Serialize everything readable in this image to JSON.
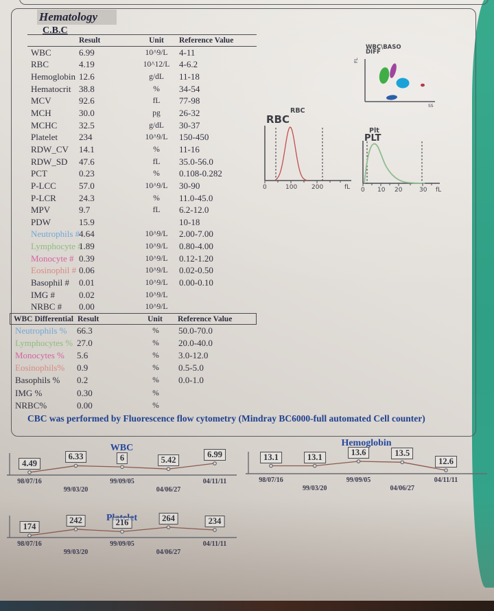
{
  "report": {
    "section_title": "Hematology",
    "subsection_title": "C.B.C",
    "note": "CBC was performed by Fluorescence flow cytometry (Mindray BC6000-full automated Cell counter)"
  },
  "colors": {
    "accent_blue": "#25479e",
    "neutrophil": "#6fa8d8",
    "lymphocyte": "#8cbd7e",
    "monocyte": "#d4649f",
    "eosinophil": "#d98a84",
    "trend_line": "#8a5a50"
  },
  "cbc_table": {
    "headers": {
      "result": "Result",
      "unit": "Unit",
      "reference": "Reference Value"
    },
    "rows": [
      {
        "name": "WBC",
        "result": "6.99",
        "unit": "10^9/L",
        "reference": "4-11",
        "color": ""
      },
      {
        "name": "RBC",
        "result": "4.19",
        "unit": "10^12/L",
        "reference": "4-6.2",
        "color": ""
      },
      {
        "name": "Hemoglobin",
        "result": "12.6",
        "unit": "g/dL",
        "reference": "11-18",
        "color": ""
      },
      {
        "name": "Hematocrit",
        "result": "38.8",
        "unit": "%",
        "reference": "34-54",
        "color": ""
      },
      {
        "name": "MCV",
        "result": "92.6",
        "unit": "fL",
        "reference": "77-98",
        "color": ""
      },
      {
        "name": "MCH",
        "result": "30.0",
        "unit": "pg",
        "reference": "26-32",
        "color": ""
      },
      {
        "name": "MCHC",
        "result": "32.5",
        "unit": "g/dL",
        "reference": "30-37",
        "color": ""
      },
      {
        "name": "Platelet",
        "result": "234",
        "unit": "10^9/L",
        "reference": "150-450",
        "color": ""
      },
      {
        "name": "RDW_CV",
        "result": "14.1",
        "unit": "%",
        "reference": "11-16",
        "color": ""
      },
      {
        "name": "RDW_SD",
        "result": "47.6",
        "unit": "fL",
        "reference": "35.0-56.0",
        "color": ""
      },
      {
        "name": "PCT",
        "result": "0.23",
        "unit": "%",
        "reference": "0.108-0.282",
        "color": ""
      },
      {
        "name": "P-LCC",
        "result": "57.0",
        "unit": "10^9/L",
        "reference": "30-90",
        "color": ""
      },
      {
        "name": "P-LCR",
        "result": "24.3",
        "unit": "%",
        "reference": "11.0-45.0",
        "color": ""
      },
      {
        "name": "MPV",
        "result": "9.7",
        "unit": "fL",
        "reference": "6.2-12.0",
        "color": ""
      },
      {
        "name": "PDW",
        "result": "15.9",
        "unit": "",
        "reference": "10-18",
        "color": ""
      },
      {
        "name": "Neutrophils #",
        "result": "4.64",
        "unit": "10^9/L",
        "reference": "2.00-7.00",
        "color": "#6fa8d8"
      },
      {
        "name": "Lymphocyte #",
        "result": "1.89",
        "unit": "10^9/L",
        "reference": "0.80-4.00",
        "color": "#8cbd7e"
      },
      {
        "name": "Monocyte #",
        "result": "0.39",
        "unit": "10^9/L",
        "reference": "0.12-1.20",
        "color": "#d4649f"
      },
      {
        "name": "Eosinophil #",
        "result": "0.06",
        "unit": "10^9/L",
        "reference": "0.02-0.50",
        "color": "#d98a84"
      },
      {
        "name": "Basophil #",
        "result": "0.01",
        "unit": "10^9/L",
        "reference": "0.00-0.10",
        "color": ""
      },
      {
        "name": "IMG #",
        "result": "0.02",
        "unit": "10^9/L",
        "reference": "",
        "color": ""
      },
      {
        "name": "NRBC #",
        "result": "0.00",
        "unit": "10^9/L",
        "reference": "",
        "color": ""
      }
    ]
  },
  "diff_table": {
    "headers": {
      "name": "WBC Differential",
      "result": "Result",
      "unit": "Unit",
      "reference": "Reference Value"
    },
    "rows": [
      {
        "name": "Neutrophils %",
        "result": "66.3",
        "unit": "%",
        "reference": "50.0-70.0",
        "color": "#6fa8d8"
      },
      {
        "name": "Lymphocytes %",
        "result": "27.0",
        "unit": "%",
        "reference": "20.0-40.0",
        "color": "#8cbd7e"
      },
      {
        "name": "Monocytes %",
        "result": "5.6",
        "unit": "%",
        "reference": "3.0-12.0",
        "color": "#d4649f"
      },
      {
        "name": "Eosinophils%",
        "result": "0.9",
        "unit": "%",
        "reference": "0.5-5.0",
        "color": "#d98a84"
      },
      {
        "name": "Basophils %",
        "result": "0.2",
        "unit": "%",
        "reference": "0.0-1.0",
        "color": ""
      },
      {
        "name": "IMG %",
        "result": "0.30",
        "unit": "%",
        "reference": "",
        "color": ""
      },
      {
        "name": "NRBC%",
        "result": "0.00",
        "unit": "%",
        "reference": "",
        "color": ""
      }
    ]
  },
  "chart_data": [
    {
      "type": "scatter",
      "title": "WBC\\BASO",
      "subtitle": "DIFF",
      "xlabel": "SS",
      "ylabel": "FL",
      "clusters": [
        {
          "name": "lymphocytes",
          "color": "#3fae46"
        },
        {
          "name": "monocytes",
          "color": "#a0459e"
        },
        {
          "name": "neutrophils",
          "color": "#1ba3d8"
        },
        {
          "name": "debris",
          "color": "#2b5fa8"
        },
        {
          "name": "eosinophils",
          "color": "#b23a48"
        }
      ]
    },
    {
      "type": "area",
      "title": "RBC",
      "subtitle": "RBC",
      "xlabel": "fL",
      "x_ticks": [
        "0",
        "100",
        "200"
      ],
      "peak_x_fL": 95,
      "color": "#c0504d"
    },
    {
      "type": "area",
      "title": "PLT",
      "subtitle": "Plt",
      "xlabel": "fL",
      "x_ticks": [
        "0",
        "10",
        "20",
        "30"
      ],
      "peak_x_fL": 7,
      "color": "#8fbc8f"
    },
    {
      "type": "line",
      "title": "WBC",
      "categories": [
        "98/07/16",
        "99/03/20",
        "99/09/05",
        "04/06/27",
        "04/11/11"
      ],
      "values": [
        4.49,
        6.33,
        6,
        5.42,
        6.99
      ],
      "labels": [
        "4.49",
        "6.33",
        "6",
        "5.42",
        "6.99"
      ]
    },
    {
      "type": "line",
      "title": "Hemoglobin",
      "categories": [
        "98/07/16",
        "99/03/20",
        "99/09/05",
        "04/06/27",
        "04/11/11"
      ],
      "values": [
        13.1,
        13.1,
        13.6,
        13.5,
        12.6
      ],
      "labels": [
        "13.1",
        "13.1",
        "13.6",
        "13.5",
        "12.6"
      ]
    },
    {
      "type": "line",
      "title": "Platelet",
      "categories": [
        "98/07/16",
        "99/03/20",
        "99/09/05",
        "04/06/27",
        "04/11/11"
      ],
      "values": [
        174,
        242,
        216,
        264,
        234
      ],
      "labels": [
        "174",
        "242",
        "216",
        "264",
        "234"
      ]
    }
  ]
}
